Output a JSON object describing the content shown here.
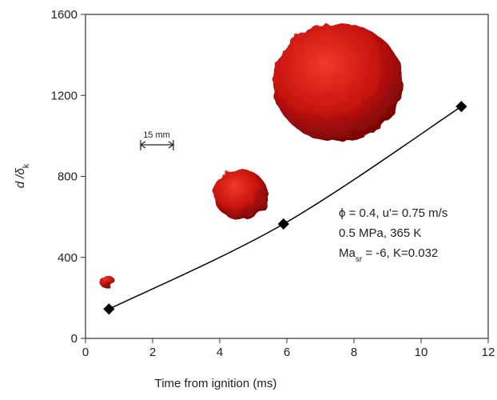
{
  "chart_data": {
    "type": "line",
    "x_label": "Time from ignition (ms)",
    "y_label": {
      "main": "d /δ",
      "sub": "k"
    },
    "x": [
      0.7,
      5.9,
      11.2
    ],
    "series": [
      {
        "color": "#000000",
        "values": [
          145,
          565,
          1145
        ]
      }
    ],
    "xlim": [
      0,
      12
    ],
    "xticks": [
      0,
      2,
      4,
      6,
      8,
      10,
      12
    ],
    "ylim": [
      0,
      1600
    ],
    "yticks": [
      0,
      400,
      800,
      1200,
      1600
    ],
    "scale_bar": "15 mm",
    "annotation": [
      {
        "text": "ϕ = 0.4, u'= 0.75 m/s"
      },
      {
        "text": "0.5 MPa, 365 K"
      },
      {
        "text": "Ma",
        "sub": "sr",
        "rest": " = -6, K=0.032"
      }
    ]
  }
}
